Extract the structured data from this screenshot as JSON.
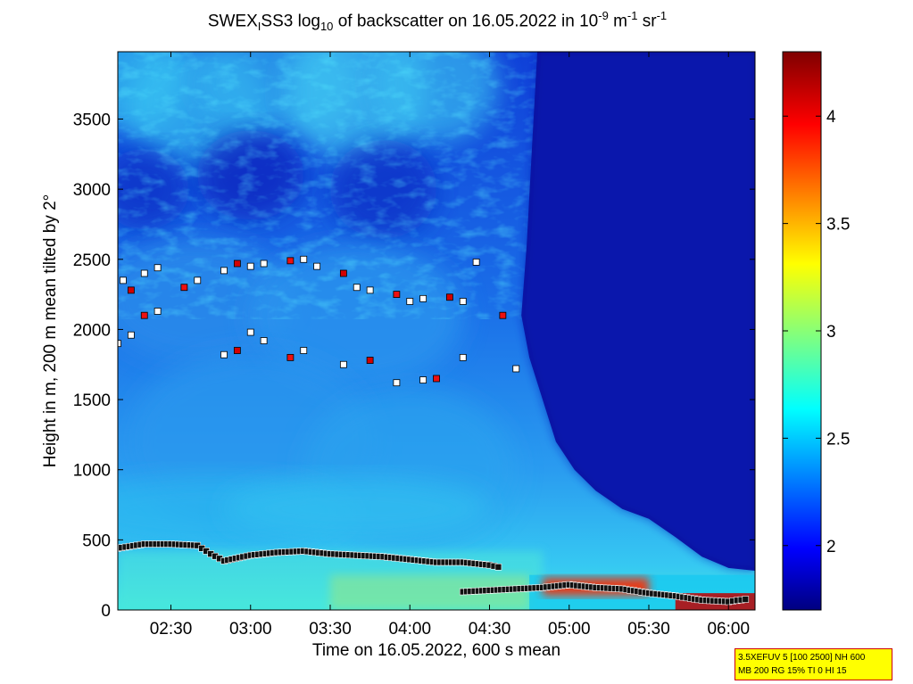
{
  "chart_data": {
    "type": "heatmap",
    "title": {
      "prefix": "SWEX",
      "sub_1": "I",
      "middle": "SS3 log",
      "sub_2": "10",
      "suffix_1": " of backscatter on 16.05.2022 in 10",
      "sup_1": "-9",
      "suffix_2": " m",
      "sup_2": "-1",
      "suffix_3": " sr",
      "sup_3": "-1"
    },
    "xlabel": "Time on 16.05.2022, 600 s mean",
    "ylabel": "Height in m, 200 m mean tilted by 2°",
    "x_ticks": [
      "02:30",
      "03:00",
      "03:30",
      "04:00",
      "04:30",
      "05:00",
      "05:30",
      "06:00"
    ],
    "y_ticks": [
      0,
      500,
      1000,
      1500,
      2000,
      2500,
      3000,
      3500
    ],
    "ylim": [
      0,
      3980
    ],
    "xlim": [
      "02:10",
      "06:10"
    ],
    "colorbar": {
      "ticks": [
        2,
        2.5,
        3,
        3.5,
        4
      ],
      "range": [
        1.7,
        4.3
      ],
      "colormap": "jet"
    },
    "boundary_layer_height": {
      "x": [
        "02:10",
        "02:20",
        "02:30",
        "02:40",
        "02:45",
        "02:50",
        "03:00",
        "03:10",
        "03:20",
        "03:30",
        "03:40",
        "03:50",
        "04:00",
        "04:10",
        "04:20",
        "04:30",
        "04:35"
      ],
      "y": [
        440,
        470,
        470,
        460,
        400,
        350,
        390,
        410,
        420,
        400,
        390,
        380,
        360,
        340,
        340,
        320,
        300
      ]
    },
    "surface_layer_height": {
      "x": [
        "04:20",
        "04:30",
        "04:40",
        "04:50",
        "05:00",
        "05:10",
        "05:20",
        "05:30",
        "05:40",
        "05:50",
        "06:00",
        "06:08"
      ],
      "y": [
        130,
        140,
        150,
        160,
        180,
        160,
        150,
        120,
        100,
        70,
        60,
        80
      ]
    },
    "cloud_layer_points": {
      "x": [
        "02:12",
        "02:15",
        "02:20",
        "02:25",
        "02:35",
        "02:40",
        "02:50",
        "02:55",
        "03:00",
        "03:05",
        "03:15",
        "03:20",
        "03:25",
        "03:35",
        "03:40",
        "03:45",
        "03:55",
        "04:00",
        "04:05",
        "04:15",
        "04:20",
        "04:25",
        "04:35",
        "04:40"
      ],
      "y": [
        2350,
        2280,
        2400,
        2440,
        2300,
        2350,
        2420,
        2470,
        2450,
        2470,
        2490,
        2500,
        2450,
        2400,
        2300,
        2280,
        2250,
        2200,
        2220,
        2230,
        2200,
        2480,
        2100,
        1720
      ]
    },
    "lower_layer_points": {
      "x": [
        "02:10",
        "02:15",
        "02:20",
        "02:25",
        "02:50",
        "02:55",
        "03:00",
        "03:05",
        "03:15",
        "03:20",
        "03:35",
        "03:45",
        "03:55",
        "04:05",
        "04:10",
        "04:20"
      ],
      "y": [
        1900,
        1960,
        2100,
        2130,
        1820,
        1850,
        1980,
        1920,
        1800,
        1850,
        1750,
        1780,
        1620,
        1640,
        1650,
        1800
      ]
    }
  },
  "info_box": {
    "line_1": "3.5XEFUV 5 [100 2500] NH 600",
    "line_2": "MB 200 RG 15% TI 0 HI 15"
  }
}
